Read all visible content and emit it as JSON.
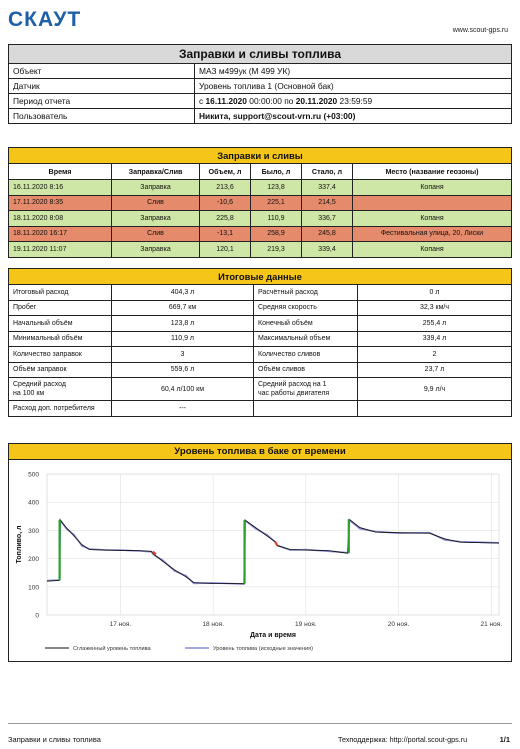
{
  "header": {
    "logo": "СКАУТ",
    "site": "www.scout-gps.ru"
  },
  "report": {
    "title": "Заправки и сливы топлива",
    "rows": [
      {
        "label": "Объект",
        "value": "МАЗ м499ук (М 499 УК)",
        "bold": false
      },
      {
        "label": "Датчик",
        "value": "Уровень топлива 1 (Основной бак)",
        "bold": false
      },
      {
        "label": "Период отчета",
        "value": "с 16.11.2020 00:00:00 по 20.11.2020 23:59:59",
        "bold": false
      },
      {
        "label": "Пользователь",
        "value": "Никита, support@scout-vrn.ru (+03:00)",
        "bold": true
      }
    ],
    "period": {
      "prefix": "с",
      "from_date": "16.11.2020",
      "from_time": "00:00:00",
      "mid": "по",
      "to_date": "20.11.2020",
      "to_time": "23:59:59"
    }
  },
  "events": {
    "title": "Заправки и сливы",
    "columns": [
      "Время",
      "Заправка/Слив",
      "Объем, л",
      "Было, л",
      "Стало, л",
      "Место (название геозоны)"
    ],
    "rows": [
      {
        "time": "16.11.2020 8:16",
        "type": "Заправка",
        "volume": "213,6",
        "before": "123,8",
        "after": "337,4",
        "place": "Копаня",
        "kind": "green"
      },
      {
        "time": "17.11.2020 8:35",
        "type": "Слив",
        "volume": "-10,6",
        "before": "225,1",
        "after": "214,5",
        "place": "",
        "kind": "red"
      },
      {
        "time": "18.11.2020 8:08",
        "type": "Заправка",
        "volume": "225,8",
        "before": "110,9",
        "after": "336,7",
        "place": "Копаня",
        "kind": "green"
      },
      {
        "time": "18.11.2020 16:17",
        "type": "Слив",
        "volume": "-13,1",
        "before": "258,9",
        "after": "245,8",
        "place": "Фестивальная улица, 20, Лиски",
        "kind": "red"
      },
      {
        "time": "19.11.2020 11:07",
        "type": "Заправка",
        "volume": "120,1",
        "before": "219,3",
        "after": "339,4",
        "place": "Копаня",
        "kind": "green"
      }
    ]
  },
  "summary": {
    "title": "Итоговые данные",
    "rows": [
      [
        "Итоговый расход",
        "404,3 л",
        "Расчётный расход",
        "0 л"
      ],
      [
        "Пробег",
        "669,7 км",
        "Средняя скорость",
        "32,3 км/ч"
      ],
      [
        "Начальный объём",
        "123,8 л",
        "Конечный объём",
        "255,4 л"
      ],
      [
        "Минимальный объём",
        "110,9 л",
        "Максимальный объем",
        "339,4 л"
      ],
      [
        "Количество заправок",
        "3",
        "Количество сливов",
        "2"
      ],
      [
        "Объём заправок",
        "559,6 л",
        "Объём сливов",
        "23,7 л"
      ],
      [
        "Средний расход\nна 100 км",
        "60,4 л/100 км",
        "Средний расход на 1\nчас работы двигателя",
        "9,9 л/ч"
      ],
      [
        "Расход доп. потребителя",
        "---",
        "",
        ""
      ]
    ]
  },
  "chart_data": {
    "type": "line",
    "title": "Уровень топлива в баке от времени",
    "xlabel": "Дата и время",
    "ylabel": "Топливо, л",
    "ylim": [
      0,
      500
    ],
    "yticks": [
      "0",
      "100",
      "200",
      "300",
      "400",
      "500"
    ],
    "xlim": [
      "16.11.2020 05:00",
      "21.11.2020 02:00"
    ],
    "xticks": [
      {
        "label": "17 ноя.",
        "t": "17.11.2020 00:00"
      },
      {
        "label": "18 ноя.",
        "t": "18.11.2020 00:00"
      },
      {
        "label": "19 ноя.",
        "t": "19.11.2020 00:00"
      },
      {
        "label": "20 ноя.",
        "t": "20.11.2020 00:00"
      },
      {
        "label": "21 ноя.",
        "t": "21.11.2020 00:00"
      }
    ],
    "grid": true,
    "legend_position": "bottom",
    "series": [
      {
        "name": "Сглаженный уровень топлива",
        "color": "#111111",
        "points": [
          [
            "16.11.2020 05:00",
            120
          ],
          [
            "16.11.2020 08:10",
            123
          ],
          [
            "16.11.2020 08:25",
            337
          ],
          [
            "16.11.2020 10:00",
            310
          ],
          [
            "16.11.2020 12:00",
            280
          ],
          [
            "16.11.2020 14:00",
            250
          ],
          [
            "16.11.2020 16:00",
            232
          ],
          [
            "16.11.2020 20:00",
            230
          ],
          [
            "17.11.2020 00:00",
            229
          ],
          [
            "17.11.2020 05:00",
            228
          ],
          [
            "17.11.2020 08:00",
            226
          ],
          [
            "17.11.2020 08:40",
            215
          ],
          [
            "17.11.2020 11:00",
            190
          ],
          [
            "17.11.2020 14:00",
            160
          ],
          [
            "17.11.2020 17:00",
            135
          ],
          [
            "17.11.2020 19:00",
            115
          ],
          [
            "18.11.2020 00:00",
            112
          ],
          [
            "18.11.2020 08:00",
            111
          ],
          [
            "18.11.2020 08:15",
            337
          ],
          [
            "18.11.2020 11:00",
            310
          ],
          [
            "18.11.2020 14:00",
            280
          ],
          [
            "18.11.2020 16:10",
            259
          ],
          [
            "18.11.2020 16:30",
            246
          ],
          [
            "18.11.2020 20:00",
            232
          ],
          [
            "19.11.2020 00:00",
            230
          ],
          [
            "19.11.2020 06:00",
            228
          ],
          [
            "19.11.2020 10:50",
            219
          ],
          [
            "19.11.2020 11:15",
            339
          ],
          [
            "19.11.2020 14:00",
            310
          ],
          [
            "19.11.2020 18:00",
            294
          ],
          [
            "20.11.2020 00:00",
            292
          ],
          [
            "20.11.2020 08:00",
            290
          ],
          [
            "20.11.2020 12:00",
            270
          ],
          [
            "20.11.2020 16:00",
            258
          ],
          [
            "21.11.2020 02:00",
            255
          ]
        ]
      },
      {
        "name": "Уровень топлива (исходные значения)",
        "color": "#8a8ad8",
        "points": [
          [
            "16.11.2020 05:00",
            122
          ],
          [
            "16.11.2020 08:10",
            124
          ],
          [
            "16.11.2020 08:30",
            335
          ],
          [
            "16.11.2020 10:00",
            306
          ],
          [
            "16.11.2020 12:00",
            285
          ],
          [
            "16.11.2020 14:00",
            245
          ],
          [
            "16.11.2020 16:00",
            234
          ],
          [
            "16.11.2020 20:00",
            231
          ],
          [
            "17.11.2020 00:00",
            230
          ],
          [
            "17.11.2020 05:00",
            227
          ],
          [
            "17.11.2020 08:00",
            224
          ],
          [
            "17.11.2020 08:40",
            213
          ],
          [
            "17.11.2020 11:00",
            194
          ],
          [
            "17.11.2020 14:00",
            156
          ],
          [
            "17.11.2020 17:00",
            139
          ],
          [
            "17.11.2020 19:00",
            112
          ],
          [
            "18.11.2020 00:00",
            114
          ],
          [
            "18.11.2020 08:00",
            110
          ],
          [
            "18.11.2020 08:20",
            334
          ],
          [
            "18.11.2020 11:00",
            306
          ],
          [
            "18.11.2020 14:00",
            284
          ],
          [
            "18.11.2020 16:10",
            257
          ],
          [
            "18.11.2020 16:30",
            248
          ],
          [
            "18.11.2020 20:00",
            230
          ],
          [
            "19.11.2020 00:00",
            232
          ],
          [
            "19.11.2020 06:00",
            226
          ],
          [
            "19.11.2020 10:50",
            221
          ],
          [
            "19.11.2020 11:20",
            336
          ],
          [
            "19.11.2020 14:00",
            306
          ],
          [
            "19.11.2020 18:00",
            296
          ],
          [
            "20.11.2020 00:00",
            290
          ],
          [
            "20.11.2020 08:00",
            292
          ],
          [
            "20.11.2020 12:00",
            266
          ],
          [
            "20.11.2020 16:00",
            260
          ],
          [
            "21.11.2020 02:00",
            256
          ]
        ]
      }
    ],
    "refuels": [
      {
        "from": [
          "16.11.2020 08:16",
          123.8
        ],
        "to": [
          "16.11.2020 08:16",
          337.4
        ],
        "color": "#2ca02c"
      },
      {
        "from": [
          "18.11.2020 08:08",
          110.9
        ],
        "to": [
          "18.11.2020 08:08",
          336.7
        ],
        "color": "#2ca02c"
      },
      {
        "from": [
          "19.11.2020 11:07",
          219.3
        ],
        "to": [
          "19.11.2020 11:07",
          339.4
        ],
        "color": "#2ca02c"
      }
    ],
    "drains": [
      {
        "from": [
          "17.11.2020 08:25",
          225.1
        ],
        "to": [
          "17.11.2020 09:10",
          214.5
        ],
        "color": "#e0442a"
      },
      {
        "from": [
          "18.11.2020 16:05",
          258.9
        ],
        "to": [
          "18.11.2020 16:40",
          245.8
        ],
        "color": "#e0442a"
      }
    ]
  },
  "footer": {
    "left": "Заправки и сливы топлива",
    "mid": "Техподдержка: http://portal.scout-gps.ru",
    "page": "1/1"
  }
}
